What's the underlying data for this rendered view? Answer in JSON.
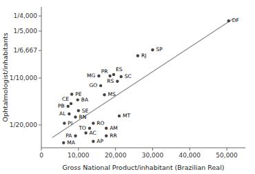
{
  "chart_data": {
    "type": "scatter",
    "xlabel": "Gross National Product/inhabitant (Brazilian Real)",
    "ylabel": "Ophtalmologist/inhabitants",
    "log": "y",
    "grid": false,
    "xlim": [
      0,
      55000
    ],
    "xticks": [
      0,
      {
        "value": 10000,
        "label": "10,000"
      },
      {
        "value": 20000,
        "label": "20,000"
      },
      {
        "value": 30000,
        "label": "30,000"
      },
      {
        "value": 40000,
        "label": "40,000"
      },
      {
        "value": 50000,
        "label": "50,000"
      }
    ],
    "ylim": [
      28000,
      3500
    ],
    "yticks": [
      {
        "value": 4000,
        "label": "1/4,000"
      },
      {
        "value": 5000,
        "label": "1/5,000"
      },
      {
        "value": 6667,
        "label": "1/6,667"
      },
      {
        "value": 10000,
        "label": "1/10,000"
      },
      {
        "value": 20000,
        "label": "1/20,000"
      }
    ],
    "series": [
      {
        "type": "scatter",
        "color": "#444444",
        "labels": [
          "DF",
          "SP",
          "RJ",
          "ES",
          "PR",
          "SC",
          "RS",
          "MG",
          "GO",
          "MS",
          "MT",
          "PE",
          "BA",
          "CE",
          "PB",
          "SE",
          "AL",
          "RN",
          "PI",
          "RO",
          "TO",
          "AC",
          "PA",
          "AM",
          "RR",
          "AP",
          "MA"
        ],
        "x": [
          50500,
          30000,
          26000,
          19500,
          18500,
          21500,
          20500,
          15500,
          16000,
          17000,
          21000,
          8200,
          9800,
          8000,
          7200,
          10000,
          7500,
          9200,
          6200,
          14000,
          13000,
          12000,
          9200,
          17500,
          17500,
          14000,
          6000
        ],
        "values": [
          4300,
          6600,
          7200,
          9500,
          9700,
          9800,
          10500,
          9700,
          11200,
          12800,
          17500,
          12700,
          13800,
          14600,
          15200,
          16200,
          17000,
          17800,
          19500,
          19500,
          21000,
          22500,
          23500,
          21000,
          23500,
          25500,
          26000
        ]
      },
      {
        "type": "line",
        "color": "#888888",
        "x": [
          3000,
          51500
        ],
        "values": [
          24000,
          4200
        ]
      }
    ]
  }
}
